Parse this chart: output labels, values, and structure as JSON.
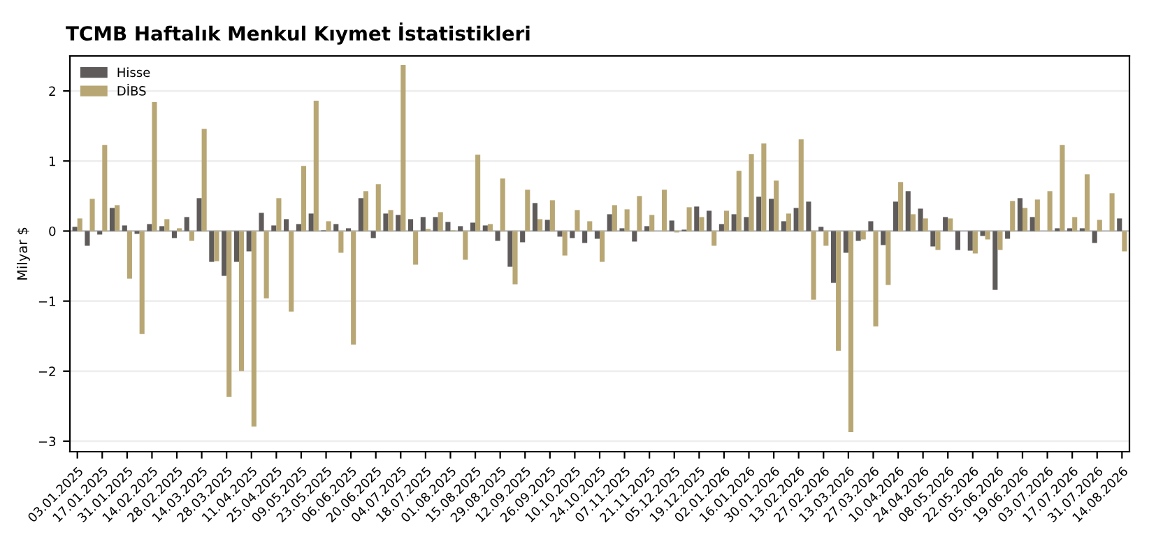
{
  "chart_data": {
    "type": "bar",
    "title": "TCMB Haftalık Menkul Kıymet İstatistikleri",
    "ylabel": "Milyar $",
    "categories": [
      "03.01.2025",
      null,
      "17.01.2025",
      null,
      "31.01.2025",
      null,
      "14.02.2025",
      null,
      "28.02.2025",
      null,
      "14.03.2025",
      null,
      "28.03.2025",
      null,
      "11.04.2025",
      null,
      "25.04.2025",
      null,
      "09.05.2025",
      null,
      "23.05.2025",
      null,
      "06.06.2025",
      null,
      "20.06.2025",
      null,
      "04.07.2025",
      null,
      "18.07.2025",
      null,
      "01.08.2025",
      null,
      "15.08.2025",
      null,
      "29.08.2025",
      null,
      "12.09.2025",
      null,
      "26.09.2025",
      null,
      "10.10.2025",
      null,
      "24.10.2025",
      null,
      "07.11.2025",
      null,
      "21.11.2025",
      null,
      "05.12.2025",
      null,
      "19.12.2025",
      null,
      "02.01.2026",
      null,
      "16.01.2026",
      null,
      "30.01.2026",
      null,
      "13.02.2026",
      null,
      "27.02.2026",
      null,
      "13.03.2026",
      null,
      "27.03.2026",
      null,
      "10.04.2026",
      null,
      "24.04.2026",
      null,
      "08.05.2026",
      null,
      "22.05.2026",
      null,
      "05.06.2026",
      null,
      "19.06.2026",
      null,
      "03.07.2026",
      null,
      "17.07.2026",
      null,
      "31.07.2026",
      null,
      "14.08.2026"
    ],
    "series": [
      {
        "name": "Hisse",
        "color": "#5f5b5b",
        "values": [
          0.06,
          -0.21,
          -0.05,
          0.33,
          0.08,
          -0.04,
          0.1,
          0.07,
          -0.1,
          0.2,
          0.47,
          -0.44,
          -0.64,
          -0.44,
          -0.29,
          0.26,
          0.08,
          0.17,
          0.1,
          0.25,
          0.01,
          0.1,
          0.04,
          0.47,
          -0.1,
          0.25,
          0.23,
          0.17,
          0.2,
          0.2,
          0.13,
          0.07,
          0.12,
          0.08,
          -0.14,
          -0.51,
          -0.16,
          0.4,
          0.16,
          -0.08,
          -0.1,
          -0.17,
          -0.11,
          0.24,
          0.04,
          -0.15,
          0.07,
          0.0,
          0.15,
          0.02,
          0.35,
          0.29,
          0.1,
          0.24,
          0.2,
          0.49,
          0.46,
          0.14,
          0.33,
          0.42,
          0.06,
          -0.74,
          -0.31,
          -0.14,
          0.14,
          -0.2,
          0.42,
          0.57,
          0.32,
          -0.22,
          0.2,
          -0.27,
          -0.28,
          -0.07,
          -0.84,
          -0.11,
          0.47,
          0.2,
          0.0,
          0.04,
          0.04,
          0.04,
          -0.17,
          0.0,
          0.18
        ]
      },
      {
        "name": "DİBS",
        "color": "#b8a774",
        "values": [
          0.18,
          0.46,
          1.23,
          0.37,
          -0.68,
          -1.47,
          1.84,
          0.17,
          0.04,
          -0.14,
          1.46,
          -0.43,
          -2.37,
          -2.0,
          -2.79,
          -0.96,
          0.47,
          -1.15,
          0.93,
          1.86,
          0.14,
          -0.31,
          -1.62,
          0.57,
          0.67,
          0.3,
          2.37,
          -0.48,
          0.03,
          0.27,
          0.01,
          -0.41,
          1.09,
          0.1,
          0.75,
          -0.76,
          0.59,
          0.17,
          0.44,
          -0.35,
          0.3,
          0.14,
          -0.44,
          0.37,
          0.31,
          0.5,
          0.23,
          0.59,
          -0.02,
          0.34,
          0.2,
          -0.21,
          0.29,
          0.86,
          1.1,
          1.25,
          0.72,
          0.25,
          1.31,
          -0.98,
          -0.21,
          -1.71,
          -2.87,
          -0.12,
          -1.36,
          -0.77,
          0.7,
          0.24,
          0.18,
          -0.27,
          0.18,
          0.0,
          -0.32,
          -0.12,
          -0.27,
          0.43,
          0.33,
          0.45,
          0.57,
          1.23,
          0.2,
          0.81,
          0.16,
          0.54,
          -0.29
        ]
      }
    ],
    "ylim": [
      -3.15,
      2.5
    ],
    "yticks": [
      {
        "value": -3,
        "label": "−3"
      },
      {
        "value": -2,
        "label": "−2"
      },
      {
        "value": -1,
        "label": "−1"
      },
      0,
      1,
      2
    ],
    "grid": "y",
    "legend": "top left",
    "ref_lines": [
      {
        "axis": "y",
        "value": 0,
        "color": "#c8c8c8"
      }
    ]
  }
}
